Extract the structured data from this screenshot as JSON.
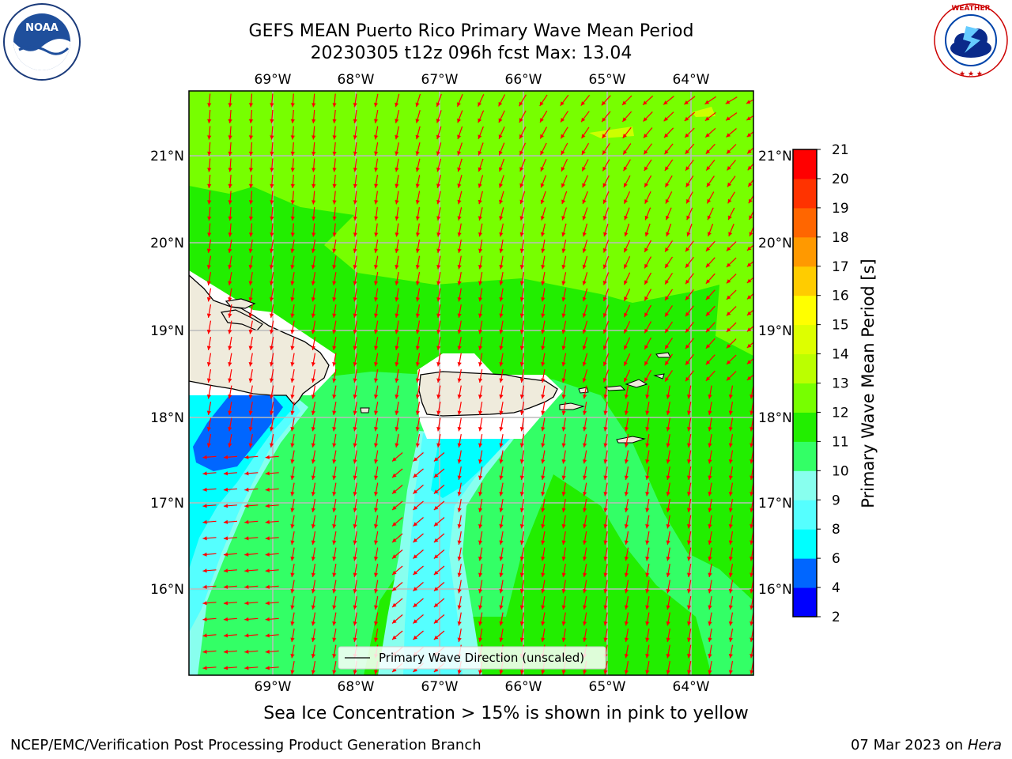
{
  "title_line1": "GEFS MEAN Puerto Rico Primary Wave Mean Period",
  "title_line2": "20230305 t12z 096h fcst   Max: 13.04",
  "logos": {
    "left": "NOAA",
    "right": "NATIONAL WEATHER SERVICE"
  },
  "map": {
    "lon_ticks": [
      "69°W",
      "68°W",
      "67°W",
      "66°W",
      "65°W",
      "64°W"
    ],
    "lat_ticks": [
      "21°N",
      "20°N",
      "19°N",
      "18°N",
      "17°N",
      "16°N"
    ],
    "lon_range": [
      -70.0,
      -63.25
    ],
    "lat_range": [
      15.0,
      21.75
    ],
    "legend": "Primary Wave Direction (unscaled)",
    "arrow_color": "#ff0000",
    "land_color": "#efebdc",
    "grid": true
  },
  "colorbar": {
    "label": "Primary Wave Mean Period [s]",
    "ticks": [
      "2",
      "4",
      "6",
      "8",
      "9",
      "10",
      "11",
      "12",
      "13",
      "14",
      "15",
      "16",
      "17",
      "18",
      "19",
      "20",
      "21"
    ],
    "colors": [
      "#0000ff",
      "#0066ff",
      "#00ffff",
      "#55ffff",
      "#88ffee",
      "#33ff66",
      "#22ee00",
      "#77ff00",
      "#bbff00",
      "#ddff00",
      "#ffff00",
      "#ffcc00",
      "#ff9900",
      "#ff6600",
      "#ff3300",
      "#ff0000"
    ]
  },
  "caption": "Sea Ice Concentration > 15% is shown in pink to yellow",
  "footer_left": "NCEP/EMC/Verification Post Processing Product Generation Branch",
  "footer_right_prefix": "07 Mar 2023 on",
  "footer_right_host": "Hera"
}
